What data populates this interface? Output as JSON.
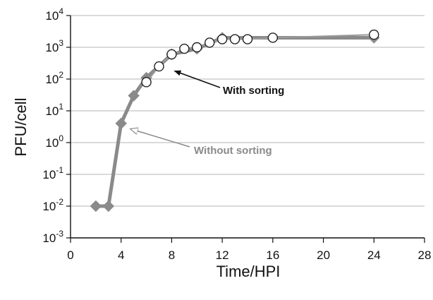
{
  "chart_data": {
    "type": "line",
    "xlabel": "Time/HPI",
    "ylabel": "PFU/cell",
    "xlim": [
      0,
      28
    ],
    "ylim_log10": [
      -3,
      4
    ],
    "y_scale": "log",
    "grid": "horizontal",
    "x_ticks": [
      "0",
      "4",
      "8",
      "12",
      "16",
      "20",
      "24",
      "28"
    ],
    "y_ticks": [
      {
        "base": "10",
        "exp": "4"
      },
      {
        "base": "10",
        "exp": "3"
      },
      {
        "base": "10",
        "exp": "2"
      },
      {
        "base": "10",
        "exp": "1"
      },
      {
        "base": "10",
        "exp": "0"
      },
      {
        "base": "10",
        "exp": "-1"
      },
      {
        "base": "10",
        "exp": "-2"
      },
      {
        "base": "10",
        "exp": "-3"
      }
    ],
    "series": [
      {
        "name": "Without sorting",
        "marker": "diamond",
        "color": "#8a8a8a",
        "x": [
          2,
          3,
          4,
          5,
          6,
          8,
          10,
          12,
          24
        ],
        "y": [
          0.01,
          0.01,
          4,
          30,
          110,
          600,
          900,
          2000,
          2000
        ]
      },
      {
        "name": "With sorting",
        "marker": "circle-open",
        "color": "#222222",
        "x": [
          6,
          7,
          8,
          9,
          10,
          11,
          12,
          13,
          14,
          16,
          24
        ],
        "y": [
          80,
          250,
          600,
          900,
          1000,
          1400,
          1800,
          1800,
          1800,
          2000,
          2500
        ]
      }
    ],
    "annotations": [
      {
        "text": "With sorting",
        "series": "With sorting",
        "point_x": 8,
        "point_y": 200,
        "style": "black-arrow"
      },
      {
        "text": "Without sorting",
        "series": "Without sorting",
        "point_x": 4.5,
        "point_y": 3,
        "style": "gray-open-arrow"
      }
    ]
  }
}
